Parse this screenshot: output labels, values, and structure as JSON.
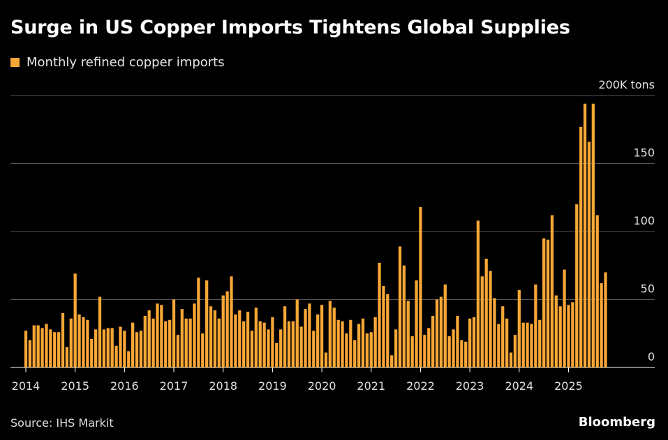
{
  "title": "Surge in US Copper Imports Tightens Global Supplies",
  "source": "Source: IHS Markit",
  "brand": "Bloomberg",
  "colors": {
    "bar": "#f9a736",
    "background": "#000000",
    "grid": "#555555"
  },
  "chart_data": {
    "type": "bar",
    "title": "Surge in US Copper Imports Tightens Global Supplies",
    "legend": [
      "Monthly refined copper imports"
    ],
    "unit_label": "200K tons",
    "ylim": [
      0,
      200
    ],
    "yticks": [
      0,
      50,
      100,
      150,
      200
    ],
    "ytick_labels": [
      "0",
      "50",
      "100",
      "150",
      "200K tons"
    ],
    "xtick_labels": [
      "2014",
      "2015",
      "2016",
      "2017",
      "2018",
      "2019",
      "2020",
      "2021",
      "2022",
      "2023",
      "2024",
      "2025"
    ],
    "start_year": 2014,
    "grid": true,
    "series": [
      {
        "name": "Monthly refined copper imports",
        "values": [
          27,
          20,
          31,
          31,
          29,
          32,
          28,
          26,
          26,
          40,
          15,
          36,
          69,
          39,
          37,
          35,
          21,
          28,
          52,
          28,
          29,
          29,
          16,
          30,
          27,
          12,
          33,
          26,
          27,
          38,
          42,
          36,
          47,
          46,
          34,
          35,
          50,
          24,
          43,
          36,
          36,
          47,
          66,
          25,
          64,
          45,
          42,
          36,
          53,
          56,
          67,
          39,
          42,
          34,
          41,
          27,
          44,
          34,
          33,
          28,
          37,
          18,
          28,
          45,
          34,
          34,
          50,
          30,
          43,
          47,
          27,
          39,
          46,
          11,
          49,
          44,
          35,
          34,
          25,
          35,
          20,
          32,
          36,
          25,
          26,
          37,
          77,
          60,
          54,
          9,
          28,
          89,
          75,
          49,
          23,
          64,
          118,
          24,
          29,
          38,
          50,
          52,
          61,
          23,
          28,
          38,
          20,
          19,
          36,
          37,
          108,
          67,
          80,
          71,
          51,
          32,
          45,
          36,
          11,
          24,
          57,
          33,
          33,
          32,
          61,
          35,
          95,
          94,
          112,
          53,
          45,
          72,
          46,
          48,
          120,
          177,
          194,
          166,
          194,
          112,
          62,
          70
        ]
      }
    ]
  }
}
